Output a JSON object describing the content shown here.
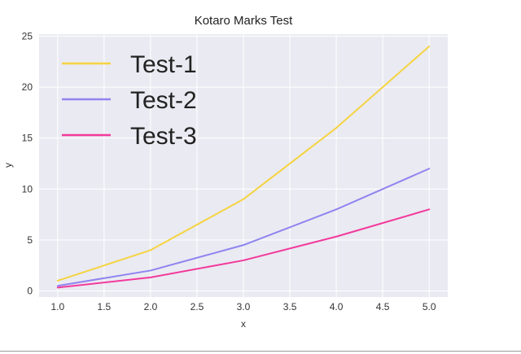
{
  "chart_data": {
    "type": "line",
    "title": "Kotaro Marks Test",
    "xlabel": "x",
    "ylabel": "y",
    "xlim": [
      0.8,
      5.2
    ],
    "ylim": [
      -0.6,
      25.2
    ],
    "xticks": [
      "1.0",
      "1.5",
      "2.0",
      "2.5",
      "3.0",
      "3.5",
      "4.0",
      "4.5",
      "5.0"
    ],
    "yticks": [
      "0",
      "5",
      "10",
      "15",
      "20",
      "25"
    ],
    "grid": true,
    "legend_position": "top-left",
    "x": [
      1,
      2,
      3,
      4,
      5
    ],
    "series": [
      {
        "name": "Test-1",
        "values": [
          1,
          4,
          9,
          16,
          24
        ],
        "color": "#f5d442"
      },
      {
        "name": "Test-2",
        "values": [
          0.5,
          2,
          4.5,
          8,
          12
        ],
        "color": "#8f84f0"
      },
      {
        "name": "Test-3",
        "values": [
          0.33,
          1.33,
          3,
          5.33,
          8
        ],
        "color": "#f23a9c"
      }
    ],
    "colors": {
      "background": "#eaeaf2",
      "grid": "#ffffff",
      "text": "#333333"
    }
  }
}
